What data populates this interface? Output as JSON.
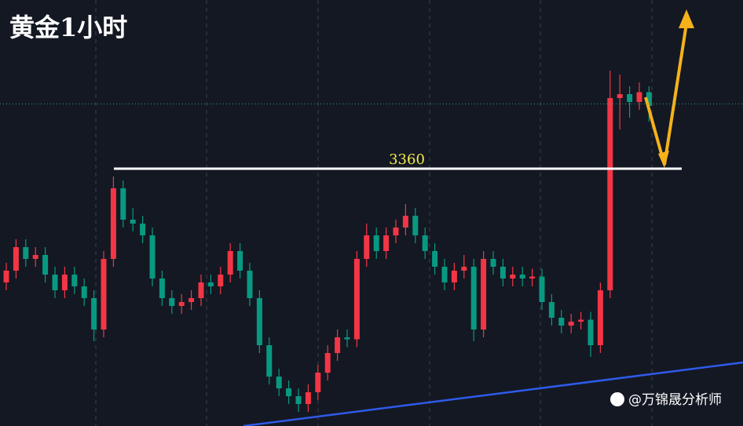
{
  "chart_data": {
    "type": "candlestick",
    "title": "黄金1小时",
    "level": 3360,
    "price_line": 3393,
    "watermark": "@万锦晟分析师",
    "ylim": [
      3228.8,
      3446
    ],
    "up_color": "#f23645",
    "down_color": "#089981",
    "candles": [
      [
        3302,
        3312,
        3298,
        3308
      ],
      [
        3308,
        3324,
        3304,
        3320
      ],
      [
        3320,
        3324,
        3310,
        3314
      ],
      [
        3314,
        3320,
        3310,
        3316
      ],
      [
        3316,
        3320,
        3302,
        3306
      ],
      [
        3306,
        3310,
        3294,
        3298
      ],
      [
        3298,
        3310,
        3294,
        3306
      ],
      [
        3306,
        3310,
        3296,
        3300
      ],
      [
        3300,
        3304,
        3290,
        3294
      ],
      [
        3294,
        3298,
        3272,
        3278
      ],
      [
        3278,
        3318,
        3274,
        3314
      ],
      [
        3314,
        3356,
        3310,
        3350
      ],
      [
        3350,
        3354,
        3330,
        3334
      ],
      [
        3334,
        3340,
        3328,
        3332
      ],
      [
        3332,
        3336,
        3322,
        3326
      ],
      [
        3326,
        3330,
        3300,
        3304
      ],
      [
        3304,
        3308,
        3290,
        3294
      ],
      [
        3294,
        3298,
        3286,
        3290
      ],
      [
        3290,
        3296,
        3286,
        3292
      ],
      [
        3292,
        3298,
        3288,
        3294
      ],
      [
        3294,
        3306,
        3290,
        3302
      ],
      [
        3302,
        3306,
        3296,
        3300
      ],
      [
        3300,
        3310,
        3296,
        3306
      ],
      [
        3306,
        3322,
        3302,
        3318
      ],
      [
        3318,
        3322,
        3304,
        3308
      ],
      [
        3308,
        3312,
        3290,
        3294
      ],
      [
        3294,
        3298,
        3266,
        3270
      ],
      [
        3270,
        3274,
        3250,
        3254
      ],
      [
        3254,
        3258,
        3244,
        3248
      ],
      [
        3248,
        3252,
        3240,
        3244
      ],
      [
        3244,
        3248,
        3236,
        3240
      ],
      [
        3240,
        3250,
        3236,
        3246
      ],
      [
        3246,
        3260,
        3242,
        3256
      ],
      [
        3256,
        3270,
        3252,
        3266
      ],
      [
        3266,
        3278,
        3262,
        3274
      ],
      [
        3274,
        3278,
        3269,
        3273
      ],
      [
        3273,
        3318,
        3269,
        3314
      ],
      [
        3314,
        3332,
        3310,
        3326
      ],
      [
        3326,
        3330,
        3314,
        3318
      ],
      [
        3318,
        3330,
        3314,
        3326
      ],
      [
        3326,
        3334,
        3322,
        3330
      ],
      [
        3330,
        3342,
        3326,
        3336
      ],
      [
        3336,
        3340,
        3322,
        3326
      ],
      [
        3326,
        3330,
        3314,
        3318
      ],
      [
        3318,
        3322,
        3306,
        3310
      ],
      [
        3310,
        3314,
        3298,
        3302
      ],
      [
        3302,
        3312,
        3298,
        3308
      ],
      [
        3308,
        3316,
        3304,
        3310
      ],
      [
        3310,
        3314,
        3272,
        3278
      ],
      [
        3278,
        3318,
        3274,
        3314
      ],
      [
        3314,
        3318,
        3306,
        3310
      ],
      [
        3310,
        3314,
        3300,
        3304
      ],
      [
        3304,
        3310,
        3300,
        3306
      ],
      [
        3306,
        3310,
        3300,
        3304
      ],
      [
        3304,
        3309,
        3300,
        3305
      ],
      [
        3305,
        3309,
        3288,
        3292
      ],
      [
        3292,
        3296,
        3280,
        3284
      ],
      [
        3284,
        3288,
        3276,
        3280
      ],
      [
        3280,
        3286,
        3276,
        3282
      ],
      [
        3282,
        3287,
        3278,
        3283
      ],
      [
        3283,
        3287,
        3264,
        3270
      ],
      [
        3270,
        3302,
        3266,
        3298
      ],
      [
        3298,
        3410,
        3294,
        3396
      ],
      [
        3396,
        3408,
        3380,
        3398
      ],
      [
        3398,
        3402,
        3386,
        3394
      ],
      [
        3394,
        3404,
        3390,
        3399
      ],
      [
        3399,
        3402,
        3384,
        3392
      ]
    ]
  }
}
